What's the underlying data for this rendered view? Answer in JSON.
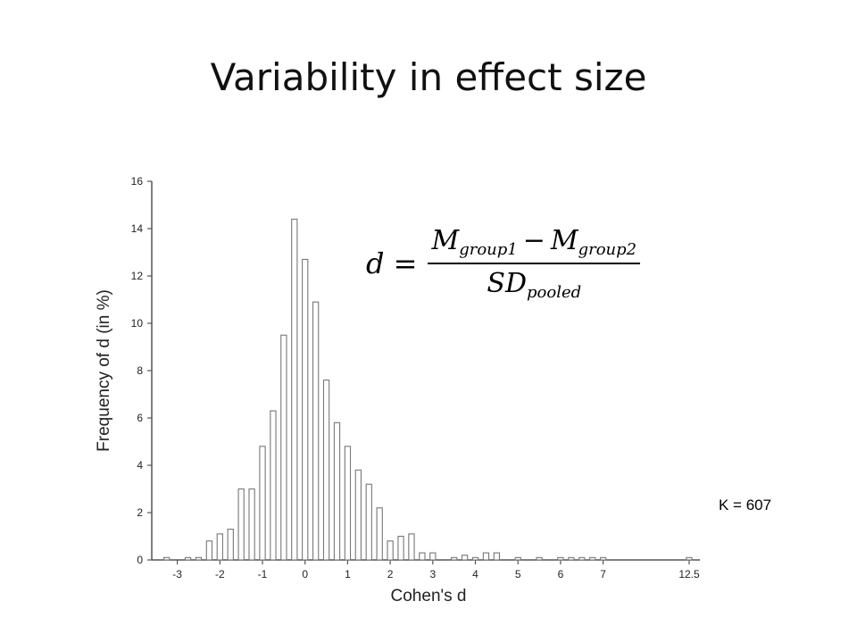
{
  "slide": {
    "title": "Variability in effect size",
    "k_label": "K = 607"
  },
  "formula": {
    "lhs": "d",
    "equals": "=",
    "num_a": "M",
    "num_a_sub": "group1",
    "minus": "−",
    "num_b": "M",
    "num_b_sub": "group2",
    "den": "SD",
    "den_sub": "pooled"
  },
  "chart_data": {
    "type": "bar",
    "title": "",
    "xlabel": "Cohen's d",
    "ylabel": "Frequency of d (in %)",
    "ylim": [
      0,
      16
    ],
    "yticks": [
      0,
      2,
      4,
      6,
      8,
      10,
      12,
      14,
      16
    ],
    "xticks": [
      "-3",
      "-2",
      "-1",
      "0",
      "1",
      "2",
      "3",
      "4",
      "5",
      "6",
      "7",
      "12.5"
    ],
    "grid": false,
    "x": [
      -3.25,
      -2.75,
      -2.5,
      -2.25,
      -2.0,
      -1.75,
      -1.5,
      -1.25,
      -1.0,
      -0.75,
      -0.5,
      -0.25,
      0.0,
      0.25,
      0.5,
      0.75,
      1.0,
      1.25,
      1.5,
      1.75,
      2.0,
      2.25,
      2.5,
      2.75,
      3.0,
      3.5,
      3.75,
      4.0,
      4.25,
      4.5,
      5.0,
      5.5,
      6.0,
      6.25,
      6.5,
      6.75,
      7.0,
      12.5
    ],
    "values": [
      0.1,
      0.1,
      0.1,
      0.8,
      1.1,
      1.3,
      3.0,
      3.0,
      4.8,
      6.3,
      9.5,
      14.4,
      12.7,
      10.9,
      7.6,
      5.8,
      4.8,
      3.8,
      3.2,
      2.2,
      0.8,
      1.0,
      1.1,
      0.3,
      0.3,
      0.1,
      0.2,
      0.1,
      0.3,
      0.3,
      0.1,
      0.1,
      0.1,
      0.1,
      0.1,
      0.1,
      0.1,
      0.1
    ]
  }
}
